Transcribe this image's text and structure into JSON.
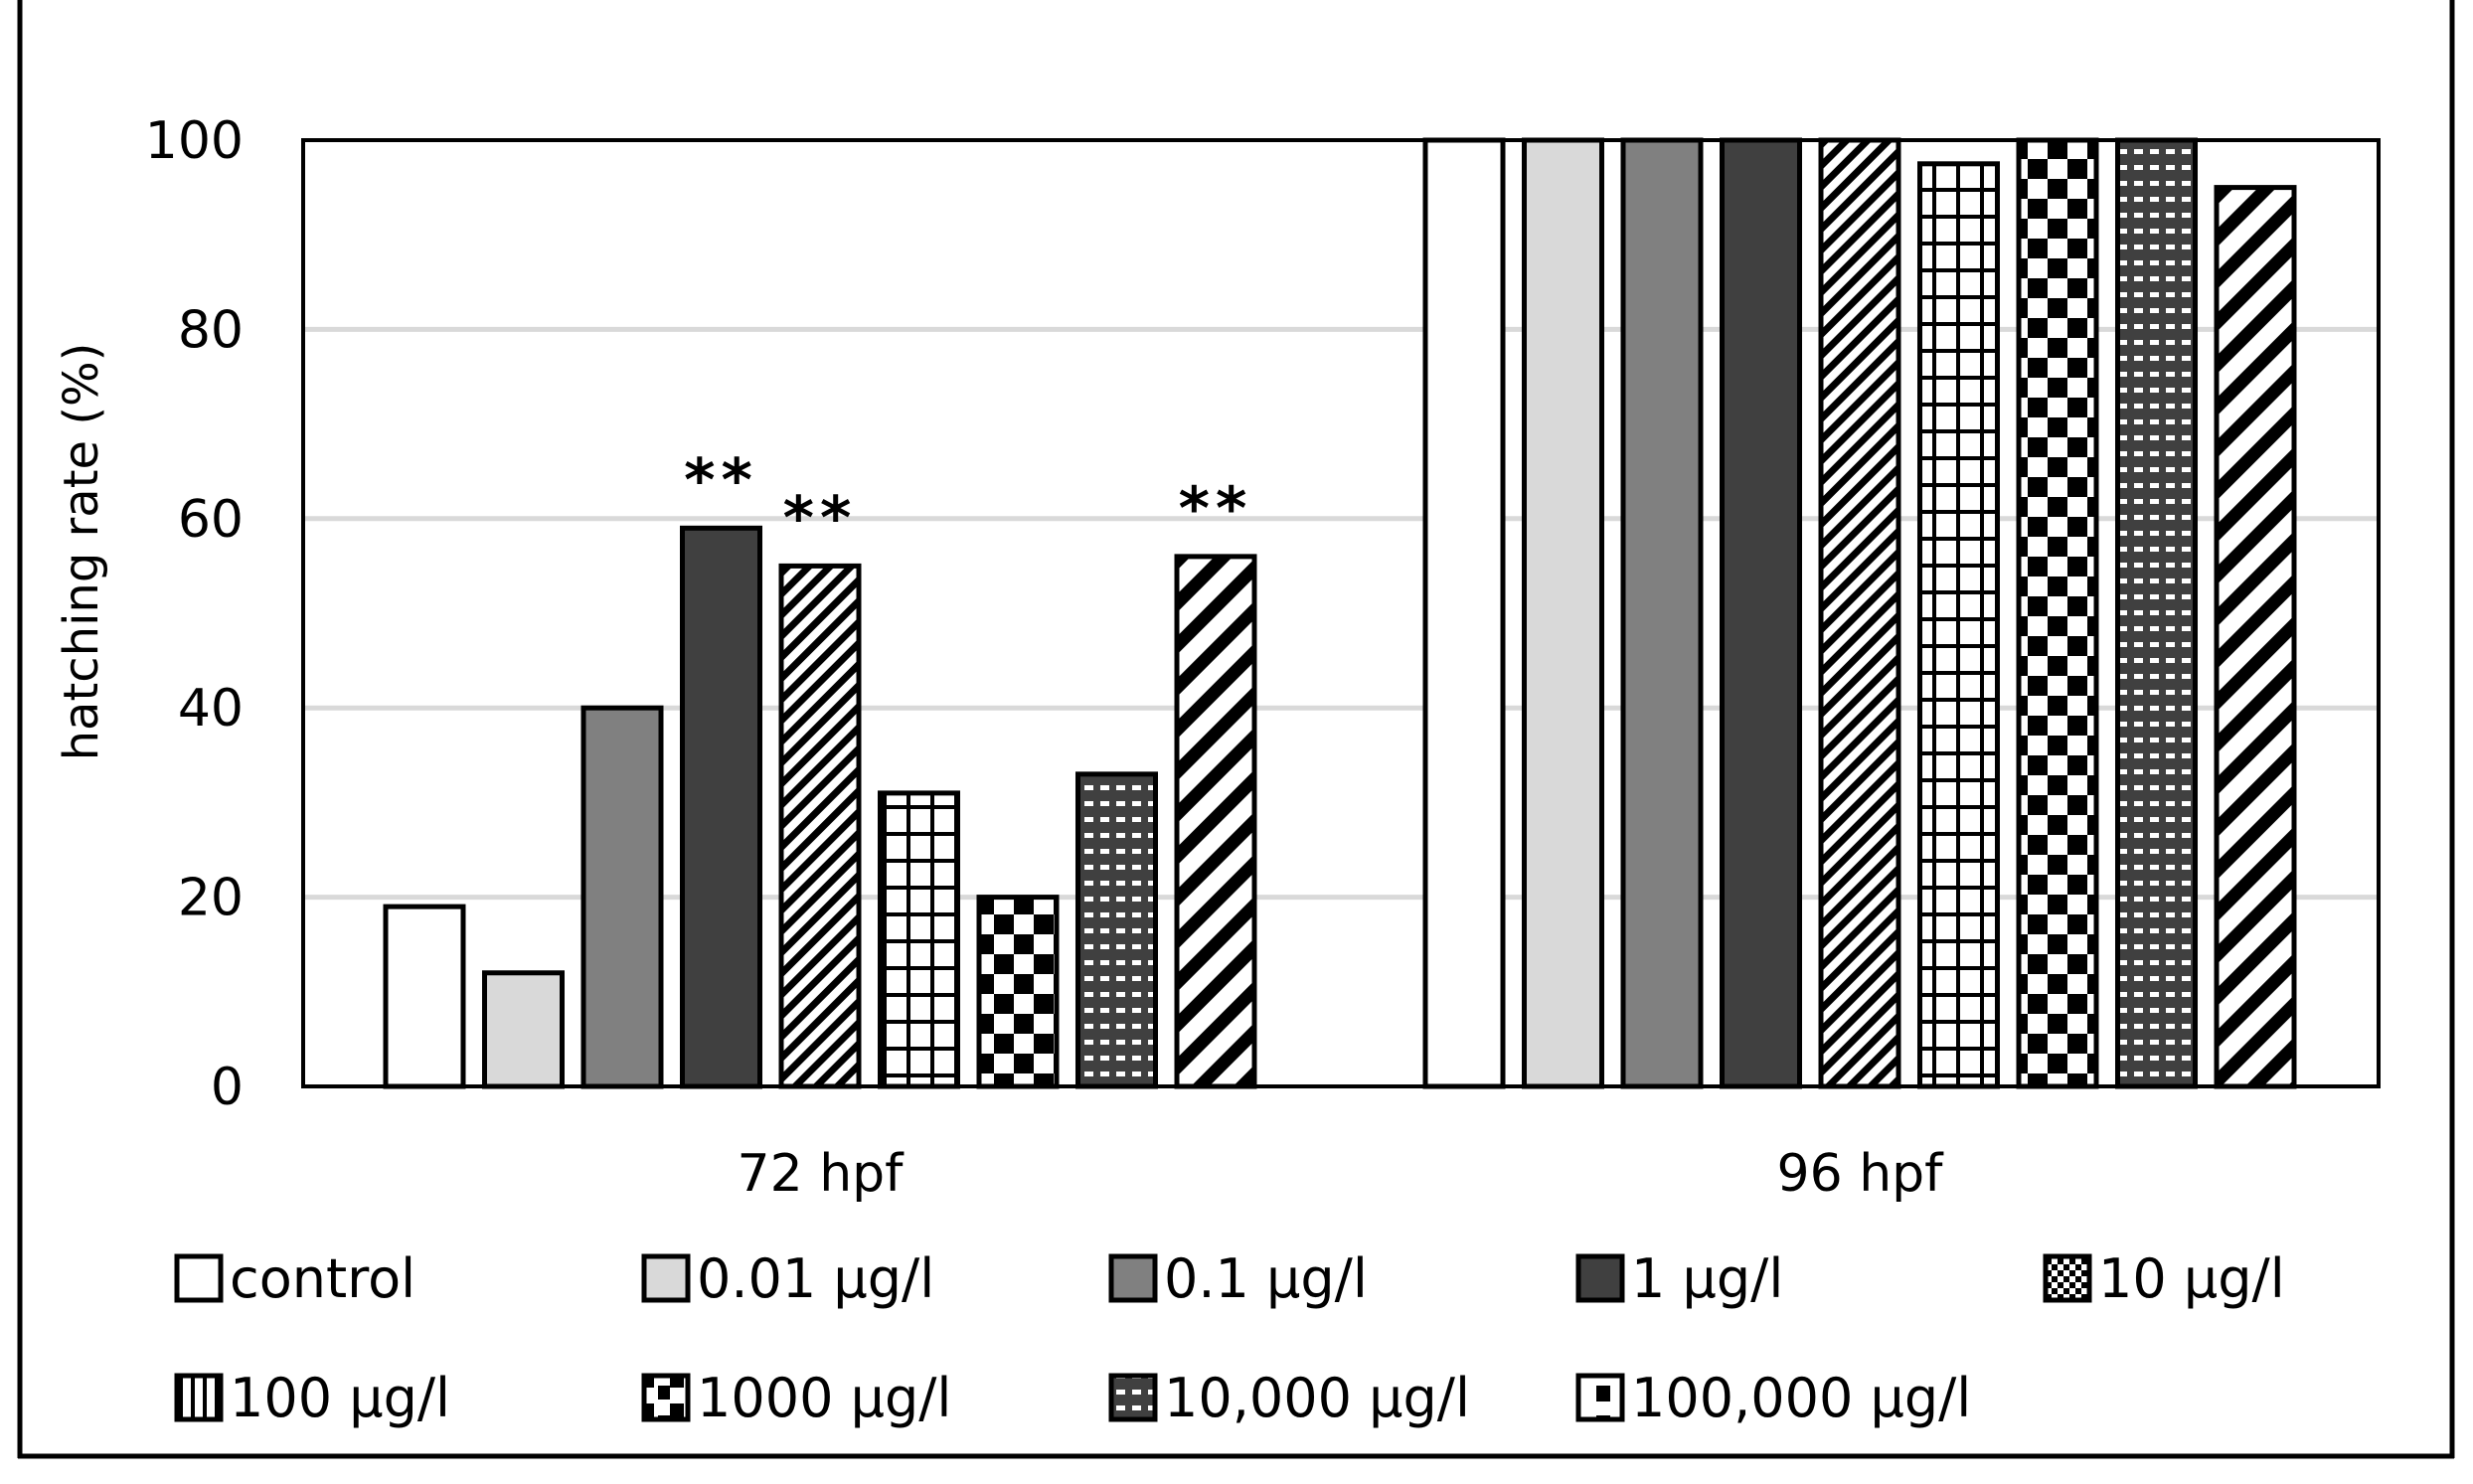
{
  "chart_data": {
    "type": "bar",
    "title": "",
    "xlabel": "",
    "ylabel": "hatching rate (%)",
    "ylim": [
      0,
      100
    ],
    "yticks": [
      0,
      20,
      40,
      60,
      80,
      100
    ],
    "grid": true,
    "categories": [
      "72 hpf",
      "96 hpf"
    ],
    "series": [
      {
        "name": "control",
        "pattern": "solid-white",
        "values": [
          19,
          100
        ]
      },
      {
        "name": "0.01 µg/l",
        "pattern": "solid-light-gray",
        "values": [
          12,
          100
        ]
      },
      {
        "name": "0.1 µg/l",
        "pattern": "solid-mid-gray",
        "values": [
          40,
          100
        ]
      },
      {
        "name": "1 µg/l",
        "pattern": "solid-dark-gray",
        "values": [
          59,
          100
        ]
      },
      {
        "name": "10 µg/l",
        "pattern": "thin-diagonal-stripes",
        "values": [
          55,
          100
        ]
      },
      {
        "name": "100 µg/l",
        "pattern": "grid",
        "values": [
          31,
          97.5
        ]
      },
      {
        "name": "1000 µg/l",
        "pattern": "checkerboard",
        "values": [
          20,
          100
        ]
      },
      {
        "name": "10,000 µg/l",
        "pattern": "dotted-dark",
        "values": [
          33,
          100
        ]
      },
      {
        "name": "100,000 µg/l",
        "pattern": "wide-diagonal-stripes",
        "values": [
          56,
          95
        ]
      }
    ],
    "annotations": [
      {
        "text": "**",
        "category": "72 hpf",
        "series": "1 µg/l"
      },
      {
        "text": "**",
        "category": "72 hpf",
        "series": "10 µg/l"
      },
      {
        "text": "**",
        "category": "72 hpf",
        "series": "100,000 µg/l"
      }
    ],
    "legend_position": "bottom",
    "colors": {
      "solid-white": "#ffffff",
      "solid-light-gray": "#d9d9d9",
      "solid-mid-gray": "#808080",
      "solid-dark-gray": "#404040",
      "gridline": "#d9d9d9",
      "axis": "#000000"
    }
  }
}
